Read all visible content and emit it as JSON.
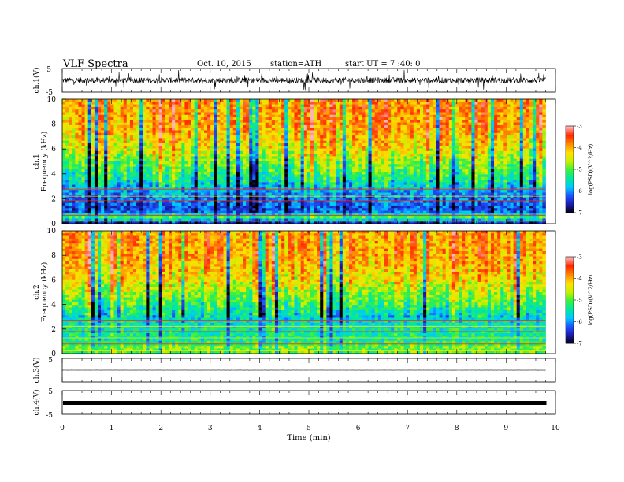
{
  "header": {
    "title": "VLF Spectra",
    "date": "Oct. 10, 2015",
    "station": "station=ATH",
    "start": "start UT = 7 :40: 0"
  },
  "colors": {
    "scale": [
      "#000000",
      "#1a1aa8",
      "#1e50ff",
      "#00c8ff",
      "#00e8a0",
      "#3cf03c",
      "#c8f000",
      "#ffe000",
      "#ff8800",
      "#ff2a00",
      "#ffb4b4"
    ],
    "trace": "#000000"
  },
  "chart_data": [
    {
      "type": "line",
      "ylabel": "ch.1(V)",
      "ylim": [
        -5,
        5
      ],
      "yticks": [
        "5",
        "-5"
      ],
      "description_values": {
        "mean": 0,
        "amplitude": 1.2
      }
    },
    {
      "type": "heatmap",
      "ylabel_channel": "ch.1",
      "ylabel": "Frequency (kHz)",
      "ylim": [
        0,
        10
      ],
      "yticks": [
        "0",
        "2",
        "4",
        "6",
        "8",
        "10"
      ],
      "colorbar": {
        "label": "log(PSD)(V^2/Hz)",
        "range": [
          -7,
          -3
        ],
        "ticks": [
          "-3",
          "-4",
          "-5",
          "-6",
          "-7"
        ]
      },
      "band_profile": [
        {
          "f": 0.0,
          "level": -6.8
        },
        {
          "f": 0.5,
          "level": -5.0
        },
        {
          "f": 1.0,
          "level": -6.3
        },
        {
          "f": 2.0,
          "level": -6.1
        },
        {
          "f": 3.0,
          "level": -5.7
        },
        {
          "f": 4.5,
          "level": -5.0
        },
        {
          "f": 6.0,
          "level": -4.4
        },
        {
          "f": 8.0,
          "level": -3.9
        },
        {
          "f": 10.0,
          "level": -3.9
        }
      ]
    },
    {
      "type": "heatmap",
      "ylabel_channel": "ch.2",
      "ylabel": "Frequency (kHz)",
      "ylim": [
        0,
        10
      ],
      "yticks": [
        "0",
        "2",
        "4",
        "6",
        "8",
        "10"
      ],
      "colorbar": {
        "label": "log(PSD)(V^2/Hz)",
        "range": [
          -7,
          -3
        ],
        "ticks": [
          "-3",
          "-4",
          "-5",
          "-6",
          "-7"
        ]
      },
      "band_profile": [
        {
          "f": 0.0,
          "level": -5.0
        },
        {
          "f": 0.5,
          "level": -4.8
        },
        {
          "f": 1.0,
          "level": -5.3
        },
        {
          "f": 2.0,
          "level": -5.4
        },
        {
          "f": 3.0,
          "level": -5.6
        },
        {
          "f": 4.5,
          "level": -4.9
        },
        {
          "f": 6.0,
          "level": -4.3
        },
        {
          "f": 8.0,
          "level": -3.9
        },
        {
          "f": 10.0,
          "level": -3.9
        }
      ]
    },
    {
      "type": "line",
      "ylabel": "ch.3(V)",
      "ylim": [
        -5,
        5
      ],
      "yticks": [
        "5"
      ],
      "description_values": {
        "mean": 0,
        "amplitude": 0.05
      }
    },
    {
      "type": "line",
      "ylabel": "ch.4(V)",
      "ylim": [
        -5,
        5
      ],
      "yticks": [
        "5",
        "-5"
      ],
      "description_values": {
        "mean": 0,
        "amplitude": 0.15
      }
    }
  ],
  "x_axis": {
    "label": "Time (min)",
    "range": [
      0,
      10
    ],
    "data_end": 9.8,
    "ticks": [
      "0",
      "1",
      "2",
      "3",
      "4",
      "5",
      "6",
      "7",
      "8",
      "9",
      "10"
    ]
  }
}
